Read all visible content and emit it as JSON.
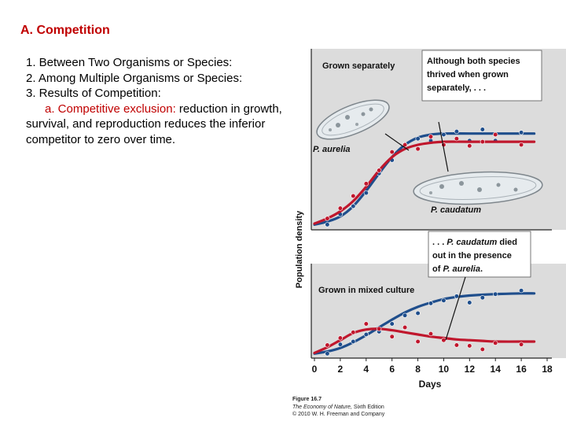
{
  "slide": {
    "title": "A. Competition",
    "items": [
      {
        "text": "1. Between Two Organisms or Species:"
      },
      {
        "text": "2. Among Multiple Organisms or Species:"
      },
      {
        "text": "3. Results of Competition:"
      }
    ],
    "subitem": {
      "label": "a. Competitive exclusion:",
      "text": " reduction in growth, survival, and reproduction reduces the inferior competitor to zero over time."
    }
  },
  "chart_data": {
    "type": "line",
    "ylabel": "Population density",
    "xlabel": "Days",
    "x_ticks": [
      0,
      2,
      4,
      6,
      8,
      10,
      12,
      14,
      16,
      18
    ],
    "xlim": [
      0,
      18
    ],
    "colors": {
      "aurelia": "#1f4e8c",
      "caudatum": "#c0172d",
      "panel_bg": "#dcdcdc",
      "callout": "#ffffff"
    },
    "panels": [
      {
        "title": "Grown separately",
        "ylim": [
          0,
          1
        ],
        "callout": "Although both species thrived when grown separately, . . .",
        "species_labels": {
          "aurelia": "P. aurelia",
          "caudatum": "P. caudatum"
        },
        "series": [
          {
            "name": "P. aurelia",
            "color": "#1f4e8c",
            "curve": {
              "x": [
                0,
                1,
                2,
                3,
                4,
                5,
                6,
                7,
                8,
                9,
                10,
                12,
                14,
                16,
                17
              ],
              "y": [
                0.02,
                0.05,
                0.1,
                0.2,
                0.35,
                0.52,
                0.68,
                0.8,
                0.87,
                0.9,
                0.91,
                0.91,
                0.91,
                0.91,
                0.91
              ]
            },
            "points": {
              "x": [
                1,
                2,
                3,
                4,
                5,
                6,
                7,
                8,
                9,
                10,
                11,
                12,
                13,
                14,
                16
              ],
              "y": [
                0.02,
                0.12,
                0.2,
                0.33,
                0.52,
                0.65,
                0.8,
                0.86,
                0.84,
                0.9,
                0.93,
                0.84,
                0.95,
                0.84,
                0.92
              ]
            }
          },
          {
            "name": "P. caudatum",
            "color": "#c0172d",
            "curve": {
              "x": [
                0,
                1,
                2,
                3,
                4,
                5,
                6,
                7,
                8,
                9,
                10,
                12,
                14,
                16,
                17
              ],
              "y": [
                0.03,
                0.08,
                0.15,
                0.25,
                0.39,
                0.55,
                0.68,
                0.76,
                0.8,
                0.82,
                0.83,
                0.83,
                0.83,
                0.83,
                0.83
              ]
            },
            "points": {
              "x": [
                1,
                2,
                3,
                4,
                5,
                6,
                7,
                8,
                9,
                10,
                11,
                12,
                13,
                14,
                16
              ],
              "y": [
                0.08,
                0.18,
                0.3,
                0.42,
                0.55,
                0.73,
                0.8,
                0.76,
                0.88,
                0.8,
                0.86,
                0.79,
                0.83,
                0.9,
                0.8
              ]
            }
          }
        ]
      },
      {
        "title": "Grown in mixed culture",
        "ylim": [
          0,
          1
        ],
        "callout": ". . . P. caudatum died out in the presence of P. aurelia.",
        "series": [
          {
            "name": "P. aurelia",
            "color": "#1f4e8c",
            "curve": {
              "x": [
                0,
                1,
                2,
                3,
                4,
                5,
                6,
                7,
                8,
                9,
                10,
                11,
                12,
                14,
                16,
                17
              ],
              "y": [
                0.03,
                0.06,
                0.11,
                0.19,
                0.29,
                0.4,
                0.51,
                0.61,
                0.69,
                0.75,
                0.8,
                0.83,
                0.85,
                0.87,
                0.88,
                0.88
              ]
            },
            "points": {
              "x": [
                1,
                2,
                3,
                4,
                5,
                6,
                7,
                8,
                9,
                10,
                11,
                12,
                13,
                14,
                16
              ],
              "y": [
                0.03,
                0.16,
                0.2,
                0.3,
                0.34,
                0.45,
                0.57,
                0.6,
                0.74,
                0.78,
                0.84,
                0.75,
                0.82,
                0.87,
                0.92
              ]
            }
          },
          {
            "name": "P. caudatum",
            "color": "#c0172d",
            "curve": {
              "x": [
                0,
                1,
                2,
                3,
                4,
                5,
                6,
                7,
                8,
                9,
                10,
                11,
                12,
                13,
                14,
                16,
                17
              ],
              "y": [
                0.04,
                0.12,
                0.22,
                0.32,
                0.37,
                0.38,
                0.36,
                0.33,
                0.3,
                0.27,
                0.25,
                0.23,
                0.22,
                0.21,
                0.2,
                0.2,
                0.2
              ]
            },
            "points": {
              "x": [
                1,
                2,
                3,
                4,
                5,
                6,
                7,
                8,
                9,
                10,
                11,
                12,
                13,
                14,
                16
              ],
              "y": [
                0.15,
                0.25,
                0.33,
                0.45,
                0.38,
                0.27,
                0.4,
                0.2,
                0.31,
                0.22,
                0.15,
                0.14,
                0.09,
                0.18,
                0.16
              ]
            }
          }
        ]
      }
    ]
  },
  "caption": {
    "figure": "Figure 16.7",
    "book": "The Economy of Nature,",
    "edition": " Sixth Edition",
    "copyright": "© 2010 W. H. Freeman and Company"
  }
}
